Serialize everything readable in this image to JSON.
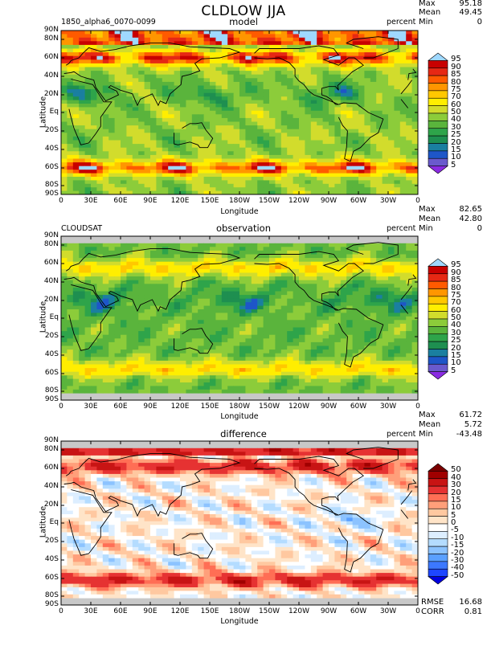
{
  "figure": {
    "title": "CLDLOW JJA"
  },
  "panels": [
    {
      "id": "model",
      "title": "model",
      "left_label": "1850_alpha6_0070-0099",
      "units": "percent",
      "stats": [
        {
          "label": "Max",
          "value": "95.18"
        },
        {
          "label": "Mean",
          "value": "49.45"
        },
        {
          "label": "Min",
          "value": "0"
        }
      ],
      "bottom_stats": [],
      "colorbar": {
        "labels": [
          "95",
          "90",
          "85",
          "80",
          "75",
          "70",
          "60",
          "50",
          "40",
          "30",
          "25",
          "20",
          "15",
          "10",
          "5"
        ]
      },
      "palette": "cloud",
      "xlabel": "Longitude",
      "ylabel": "Latitude"
    },
    {
      "id": "observation",
      "title": "observation",
      "left_label": "CLOUDSAT",
      "units": "percent",
      "stats": [
        {
          "label": "Max",
          "value": "82.65"
        },
        {
          "label": "Mean",
          "value": "42.80"
        },
        {
          "label": "Min",
          "value": "0"
        }
      ],
      "bottom_stats": [],
      "colorbar": {
        "labels": [
          "95",
          "90",
          "85",
          "80",
          "75",
          "70",
          "60",
          "50",
          "40",
          "30",
          "25",
          "20",
          "15",
          "10",
          "5"
        ]
      },
      "palette": "cloud",
      "xlabel": "Longitude",
      "ylabel": "Latitude"
    },
    {
      "id": "difference",
      "title": "difference",
      "left_label": "",
      "units": "percent",
      "stats": [
        {
          "label": "Max",
          "value": "61.72"
        },
        {
          "label": "Mean",
          "value": "5.72"
        },
        {
          "label": "Min",
          "value": "-43.48"
        }
      ],
      "bottom_stats": [
        {
          "label": "RMSE",
          "value": "16.68"
        },
        {
          "label": "CORR",
          "value": "0.81"
        }
      ],
      "colorbar": {
        "labels": [
          "50",
          "40",
          "30",
          "20",
          "15",
          "10",
          "5",
          "0",
          "-5",
          "-10",
          "-15",
          "-20",
          "-30",
          "-40",
          "-50"
        ]
      },
      "palette": "diff",
      "xlabel": "Longitude",
      "ylabel": "Latitude"
    }
  ],
  "axes": {
    "x_ticks": [
      "0",
      "30E",
      "60E",
      "90E",
      "120E",
      "150E",
      "180W",
      "150W",
      "120W",
      "90W",
      "60W",
      "30W",
      "0"
    ],
    "y_ticks": [
      "90N",
      "80N",
      "60N",
      "40N",
      "20N",
      "Eq",
      "20S",
      "40S",
      "60S",
      "80S",
      "90S"
    ]
  },
  "chart_data": [
    {
      "type": "heatmap",
      "title": "model",
      "subtitle": "1850_alpha6_0070-0099",
      "xlabel": "Longitude",
      "ylabel": "Latitude",
      "xlim": [
        0,
        360
      ],
      "ylim": [
        -90,
        90
      ],
      "units": "percent",
      "stats": {
        "max": 95.18,
        "mean": 49.45,
        "min": 0
      },
      "levels": [
        5,
        10,
        15,
        20,
        25,
        30,
        40,
        50,
        60,
        70,
        75,
        80,
        85,
        90,
        95
      ]
    },
    {
      "type": "heatmap",
      "title": "observation",
      "subtitle": "CLOUDSAT",
      "xlabel": "Longitude",
      "ylabel": "Latitude",
      "xlim": [
        0,
        360
      ],
      "ylim": [
        -90,
        90
      ],
      "units": "percent",
      "stats": {
        "max": 82.65,
        "mean": 42.8,
        "min": 0
      },
      "levels": [
        5,
        10,
        15,
        20,
        25,
        30,
        40,
        50,
        60,
        70,
        75,
        80,
        85,
        90,
        95
      ]
    },
    {
      "type": "heatmap",
      "title": "difference",
      "xlabel": "Longitude",
      "ylabel": "Latitude",
      "xlim": [
        0,
        360
      ],
      "ylim": [
        -90,
        90
      ],
      "units": "percent",
      "stats": {
        "max": 61.72,
        "mean": 5.72,
        "min": -43.48,
        "rmse": 16.68,
        "corr": 0.81
      },
      "levels": [
        -50,
        -40,
        -30,
        -20,
        -15,
        -10,
        -5,
        0,
        5,
        10,
        15,
        20,
        30,
        40,
        50
      ]
    }
  ],
  "colors": {
    "cloud": [
      "#8a2be2",
      "#6a5acd",
      "#1e56c8",
      "#1a7fa0",
      "#1e8f50",
      "#2ea44a",
      "#5ab43c",
      "#8ccc3a",
      "#d2dc2c",
      "#ffee00",
      "#ffc800",
      "#ff9600",
      "#ff5a00",
      "#e62814",
      "#c80000",
      "#9fd8ff"
    ],
    "diff": [
      "#0000e0",
      "#1e46ff",
      "#3c78ff",
      "#5aa0ff",
      "#8cc3ff",
      "#b4dcff",
      "#ddeeff",
      "#ffffff",
      "#ffe4c8",
      "#ffc8a0",
      "#ff9f7a",
      "#ff6e55",
      "#e63232",
      "#c81414",
      "#a00000",
      "#7a0000"
    ]
  }
}
